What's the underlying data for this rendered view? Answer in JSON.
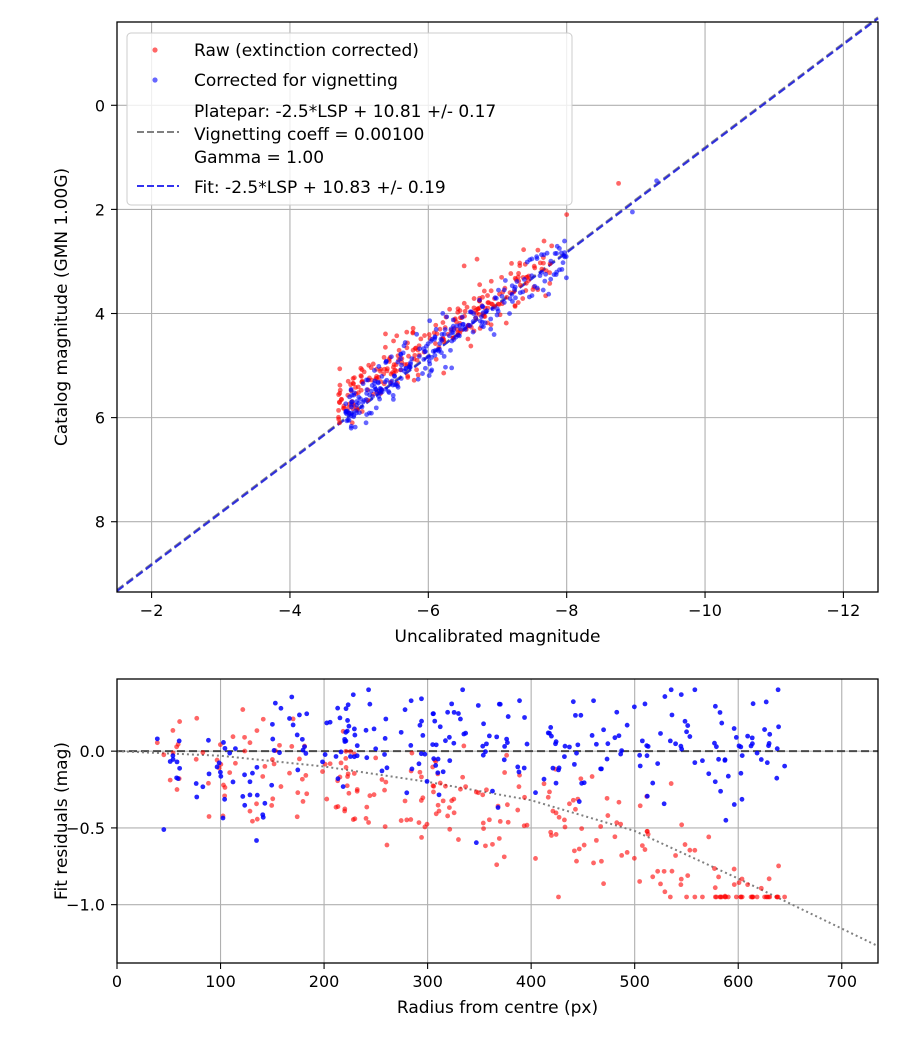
{
  "chart_data": [
    {
      "type": "scatter",
      "xlabel": "Uncalibrated magnitude",
      "ylabel": "Catalog magnitude (GMN 1.00G)",
      "xlim": [
        -1.5,
        -12.5
      ],
      "ylim": [
        9.35,
        -1.6
      ],
      "x_ticks": [
        -2,
        -4,
        -6,
        -8,
        -10,
        -12
      ],
      "x_tick_labels": [
        "−2",
        "−4",
        "−6",
        "−8",
        "−10",
        "−12"
      ],
      "y_ticks": [
        0,
        2,
        4,
        6,
        8
      ],
      "y_tick_labels": [
        "0",
        "2",
        "4",
        "6",
        "8"
      ],
      "grid": true,
      "legend_position": "top-left",
      "legend": [
        {
          "label": "Raw (extinction corrected)",
          "kind": "marker",
          "color": "#ff0000"
        },
        {
          "label": "Corrected for vignetting",
          "kind": "marker",
          "color": "#0000ff"
        },
        {
          "lines": [
            "Platepar: -2.5*LSP + 10.81 +/- 0.17",
            "Vignetting coeff = 0.00100",
            "Gamma = 1.00"
          ],
          "kind": "dashed-line",
          "color": "#808080"
        },
        {
          "label": "Fit: -2.5*LSP + 10.83 +/- 0.19",
          "kind": "dashed-line",
          "color": "#3333ee"
        }
      ],
      "series": [
        {
          "name": "Raw (extinction corrected)",
          "color": "#ff0000",
          "cluster": {
            "count": 260,
            "x_range": [
              -4.7,
              -7.8
            ],
            "slope": 0.9,
            "intercept": 10.0,
            "spread": 0.25
          },
          "outliers": [
            {
              "x": -8.75,
              "y": 1.5
            },
            {
              "x": -8.0,
              "y": 2.1
            },
            {
              "x": -4.9,
              "y": 6.1
            }
          ]
        },
        {
          "name": "Corrected for vignetting",
          "color": "#0000ff",
          "cluster": {
            "count": 260,
            "x_range": [
              -4.8,
              -8.0
            ],
            "slope": 0.95,
            "intercept": 10.45,
            "spread": 0.22
          },
          "outliers": [
            {
              "x": -9.3,
              "y": 1.45
            },
            {
              "x": -8.95,
              "y": 2.05
            },
            {
              "x": -5.1,
              "y": 6.1
            }
          ]
        }
      ],
      "lines": [
        {
          "name": "Platepar",
          "slope": 1.0,
          "intercept": 10.81,
          "color": "#808080",
          "style": "dashed"
        },
        {
          "name": "Fit",
          "slope": 1.0,
          "intercept": 10.83,
          "color": "#2222dd",
          "style": "dashed"
        }
      ]
    },
    {
      "type": "scatter",
      "xlabel": "Radius from centre (px)",
      "ylabel": "Fit residuals (mag)",
      "xlim": [
        0,
        735
      ],
      "ylim": [
        -1.38,
        0.47
      ],
      "x_ticks": [
        0,
        100,
        200,
        300,
        400,
        500,
        600,
        700
      ],
      "x_tick_labels": [
        "0",
        "100",
        "200",
        "300",
        "400",
        "500",
        "600",
        "700"
      ],
      "y_ticks": [
        0.0,
        -0.5,
        -1.0
      ],
      "y_tick_labels": [
        "0.0",
        "−0.5",
        "−1.0"
      ],
      "grid": true,
      "series": [
        {
          "name": "Raw (extinction corrected)",
          "color": "#ff0000",
          "count": 260,
          "x_range": [
            38,
            645
          ],
          "model": "raw",
          "spread": 0.18
        },
        {
          "name": "Corrected for vignetting",
          "color": "#0000ff",
          "count": 260,
          "x_range": [
            38,
            645
          ],
          "model": "corrected",
          "spread": 0.17
        }
      ],
      "lines": [
        {
          "name": "Zero",
          "y": 0.0,
          "color": "#333333",
          "style": "dashed"
        },
        {
          "name": "Vignetting model",
          "color": "#808080",
          "style": "dotted",
          "x": [
            0,
            100,
            200,
            300,
            400,
            500,
            600,
            735
          ],
          "y": [
            0.0,
            -0.03,
            -0.1,
            -0.2,
            -0.32,
            -0.52,
            -0.83,
            -1.27
          ]
        }
      ]
    }
  ]
}
